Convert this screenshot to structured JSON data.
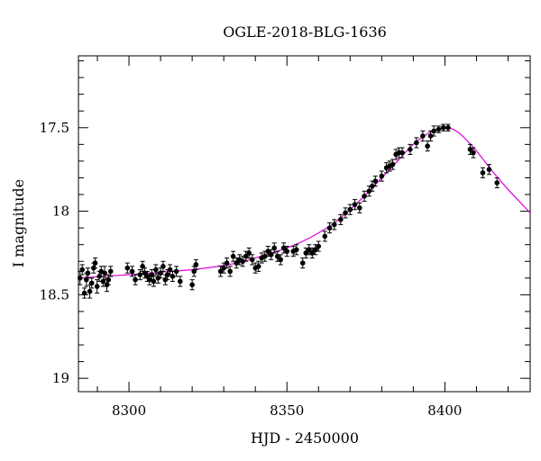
{
  "chart_data": {
    "type": "scatter",
    "title": "OGLE-2018-BLG-1636",
    "xlabel": "HJD - 2450000",
    "ylabel": "I magnitude",
    "xlim": [
      8284,
      8427
    ],
    "ylim": [
      19.08,
      17.07
    ],
    "y_inverted": true,
    "x_ticks": [
      8300,
      8350,
      8400
    ],
    "x_tick_labels": [
      "8300",
      "8350",
      "8400"
    ],
    "y_ticks": [
      17.5,
      18,
      18.5,
      19
    ],
    "y_tick_labels": [
      "17.5",
      "18",
      "18.5",
      "19"
    ],
    "grid": false,
    "colors": {
      "points": "#000000",
      "model": "#dd00dd"
    },
    "observations": [
      {
        "x": 8284.5,
        "y": 18.4,
        "err": 0.04
      },
      {
        "x": 8285.2,
        "y": 18.35,
        "err": 0.03
      },
      {
        "x": 8285.9,
        "y": 18.49,
        "err": 0.03
      },
      {
        "x": 8286.5,
        "y": 18.41,
        "err": 0.04
      },
      {
        "x": 8287.0,
        "y": 18.37,
        "err": 0.03
      },
      {
        "x": 8287.6,
        "y": 18.48,
        "err": 0.04
      },
      {
        "x": 8288.2,
        "y": 18.43,
        "err": 0.03
      },
      {
        "x": 8288.8,
        "y": 18.34,
        "err": 0.03
      },
      {
        "x": 8289.3,
        "y": 18.31,
        "err": 0.03
      },
      {
        "x": 8289.9,
        "y": 18.45,
        "err": 0.04
      },
      {
        "x": 8290.6,
        "y": 18.39,
        "err": 0.03
      },
      {
        "x": 8291.2,
        "y": 18.36,
        "err": 0.03
      },
      {
        "x": 8291.8,
        "y": 18.42,
        "err": 0.03
      },
      {
        "x": 8292.3,
        "y": 18.37,
        "err": 0.04
      },
      {
        "x": 8293.0,
        "y": 18.44,
        "err": 0.04
      },
      {
        "x": 8293.5,
        "y": 18.41,
        "err": 0.03
      },
      {
        "x": 8294.2,
        "y": 18.36,
        "err": 0.03
      },
      {
        "x": 8299.5,
        "y": 18.34,
        "err": 0.03
      },
      {
        "x": 8301.0,
        "y": 18.36,
        "err": 0.03
      },
      {
        "x": 8302.0,
        "y": 18.41,
        "err": 0.03
      },
      {
        "x": 8303.5,
        "y": 18.38,
        "err": 0.03
      },
      {
        "x": 8304.3,
        "y": 18.33,
        "err": 0.03
      },
      {
        "x": 8305.0,
        "y": 18.37,
        "err": 0.03
      },
      {
        "x": 8305.8,
        "y": 18.39,
        "err": 0.03
      },
      {
        "x": 8306.5,
        "y": 18.41,
        "err": 0.03
      },
      {
        "x": 8307.2,
        "y": 18.38,
        "err": 0.03
      },
      {
        "x": 8307.8,
        "y": 18.42,
        "err": 0.03
      },
      {
        "x": 8308.5,
        "y": 18.35,
        "err": 0.03
      },
      {
        "x": 8309.2,
        "y": 18.4,
        "err": 0.03
      },
      {
        "x": 8310.0,
        "y": 18.37,
        "err": 0.03
      },
      {
        "x": 8310.8,
        "y": 18.33,
        "err": 0.03
      },
      {
        "x": 8311.5,
        "y": 18.41,
        "err": 0.03
      },
      {
        "x": 8312.2,
        "y": 18.38,
        "err": 0.03
      },
      {
        "x": 8313.0,
        "y": 18.35,
        "err": 0.03
      },
      {
        "x": 8313.8,
        "y": 18.39,
        "err": 0.03
      },
      {
        "x": 8315.0,
        "y": 18.36,
        "err": 0.03
      },
      {
        "x": 8316.2,
        "y": 18.42,
        "err": 0.03
      },
      {
        "x": 8320.0,
        "y": 18.44,
        "err": 0.03
      },
      {
        "x": 8320.6,
        "y": 18.36,
        "err": 0.03
      },
      {
        "x": 8321.2,
        "y": 18.32,
        "err": 0.03
      },
      {
        "x": 8329.0,
        "y": 18.36,
        "err": 0.03
      },
      {
        "x": 8330.0,
        "y": 18.34,
        "err": 0.03
      },
      {
        "x": 8331.0,
        "y": 18.31,
        "err": 0.03
      },
      {
        "x": 8332.0,
        "y": 18.36,
        "err": 0.03
      },
      {
        "x": 8333.0,
        "y": 18.27,
        "err": 0.03
      },
      {
        "x": 8334.0,
        "y": 18.31,
        "err": 0.03
      },
      {
        "x": 8335.0,
        "y": 18.29,
        "err": 0.03
      },
      {
        "x": 8336.0,
        "y": 18.3,
        "err": 0.03
      },
      {
        "x": 8337.0,
        "y": 18.27,
        "err": 0.03
      },
      {
        "x": 8338.0,
        "y": 18.25,
        "err": 0.03
      },
      {
        "x": 8339.0,
        "y": 18.29,
        "err": 0.03
      },
      {
        "x": 8340.0,
        "y": 18.34,
        "err": 0.03
      },
      {
        "x": 8341.0,
        "y": 18.33,
        "err": 0.03
      },
      {
        "x": 8342.0,
        "y": 18.28,
        "err": 0.03
      },
      {
        "x": 8343.0,
        "y": 18.27,
        "err": 0.03
      },
      {
        "x": 8344.0,
        "y": 18.24,
        "err": 0.03
      },
      {
        "x": 8345.0,
        "y": 18.26,
        "err": 0.03
      },
      {
        "x": 8346.0,
        "y": 18.22,
        "err": 0.03
      },
      {
        "x": 8347.0,
        "y": 18.27,
        "err": 0.03
      },
      {
        "x": 8348.0,
        "y": 18.29,
        "err": 0.03
      },
      {
        "x": 8349.0,
        "y": 18.22,
        "err": 0.03
      },
      {
        "x": 8350.0,
        "y": 18.24,
        "err": 0.03
      },
      {
        "x": 8352.0,
        "y": 18.24,
        "err": 0.03
      },
      {
        "x": 8353.0,
        "y": 18.23,
        "err": 0.03
      },
      {
        "x": 8355.0,
        "y": 18.31,
        "err": 0.03
      },
      {
        "x": 8356.0,
        "y": 18.25,
        "err": 0.03
      },
      {
        "x": 8357.0,
        "y": 18.23,
        "err": 0.03
      },
      {
        "x": 8358.0,
        "y": 18.25,
        "err": 0.03
      },
      {
        "x": 8359.0,
        "y": 18.23,
        "err": 0.03
      },
      {
        "x": 8360.0,
        "y": 18.21,
        "err": 0.03
      },
      {
        "x": 8362.0,
        "y": 18.15,
        "err": 0.03
      },
      {
        "x": 8363.5,
        "y": 18.1,
        "err": 0.03
      },
      {
        "x": 8365.0,
        "y": 18.08,
        "err": 0.03
      },
      {
        "x": 8367.0,
        "y": 18.05,
        "err": 0.03
      },
      {
        "x": 8368.5,
        "y": 18.01,
        "err": 0.03
      },
      {
        "x": 8370.0,
        "y": 17.99,
        "err": 0.03
      },
      {
        "x": 8371.5,
        "y": 17.96,
        "err": 0.03
      },
      {
        "x": 8373.0,
        "y": 17.98,
        "err": 0.03
      },
      {
        "x": 8374.5,
        "y": 17.91,
        "err": 0.03
      },
      {
        "x": 8376.0,
        "y": 17.88,
        "err": 0.03
      },
      {
        "x": 8377.0,
        "y": 17.85,
        "err": 0.03
      },
      {
        "x": 8378.0,
        "y": 17.82,
        "err": 0.03
      },
      {
        "x": 8380.0,
        "y": 17.79,
        "err": 0.03
      },
      {
        "x": 8381.5,
        "y": 17.74,
        "err": 0.03
      },
      {
        "x": 8382.5,
        "y": 17.73,
        "err": 0.03
      },
      {
        "x": 8383.5,
        "y": 17.72,
        "err": 0.03
      },
      {
        "x": 8384.5,
        "y": 17.66,
        "err": 0.03
      },
      {
        "x": 8385.5,
        "y": 17.65,
        "err": 0.03
      },
      {
        "x": 8386.5,
        "y": 17.65,
        "err": 0.03
      },
      {
        "x": 8389.0,
        "y": 17.63,
        "err": 0.03
      },
      {
        "x": 8391.0,
        "y": 17.59,
        "err": 0.03
      },
      {
        "x": 8393.0,
        "y": 17.55,
        "err": 0.03
      },
      {
        "x": 8394.5,
        "y": 17.61,
        "err": 0.03
      },
      {
        "x": 8395.5,
        "y": 17.55,
        "err": 0.03
      },
      {
        "x": 8396.5,
        "y": 17.52,
        "err": 0.03
      },
      {
        "x": 8398.0,
        "y": 17.51,
        "err": 0.02
      },
      {
        "x": 8399.5,
        "y": 17.5,
        "err": 0.02
      },
      {
        "x": 8401.0,
        "y": 17.5,
        "err": 0.02
      },
      {
        "x": 8408.0,
        "y": 17.63,
        "err": 0.03
      },
      {
        "x": 8409.0,
        "y": 17.65,
        "err": 0.03
      },
      {
        "x": 8412.0,
        "y": 17.77,
        "err": 0.03
      },
      {
        "x": 8414.0,
        "y": 17.75,
        "err": 0.03
      },
      {
        "x": 8416.5,
        "y": 17.83,
        "err": 0.03
      }
    ],
    "model_curve": [
      {
        "x": 8284,
        "y": 18.4
      },
      {
        "x": 8300,
        "y": 18.38
      },
      {
        "x": 8310,
        "y": 18.365
      },
      {
        "x": 8320,
        "y": 18.35
      },
      {
        "x": 8330,
        "y": 18.325
      },
      {
        "x": 8335,
        "y": 18.305
      },
      {
        "x": 8340,
        "y": 18.28
      },
      {
        "x": 8345,
        "y": 18.25
      },
      {
        "x": 8350,
        "y": 18.22
      },
      {
        "x": 8355,
        "y": 18.18
      },
      {
        "x": 8360,
        "y": 18.13
      },
      {
        "x": 8365,
        "y": 18.07
      },
      {
        "x": 8370,
        "y": 17.99
      },
      {
        "x": 8375,
        "y": 17.9
      },
      {
        "x": 8380,
        "y": 17.8
      },
      {
        "x": 8385,
        "y": 17.7
      },
      {
        "x": 8390,
        "y": 17.6
      },
      {
        "x": 8395,
        "y": 17.53
      },
      {
        "x": 8398,
        "y": 17.505
      },
      {
        "x": 8400,
        "y": 17.5
      },
      {
        "x": 8402,
        "y": 17.505
      },
      {
        "x": 8405,
        "y": 17.54
      },
      {
        "x": 8410,
        "y": 17.64
      },
      {
        "x": 8415,
        "y": 17.76
      },
      {
        "x": 8420,
        "y": 17.87
      },
      {
        "x": 8425,
        "y": 17.97
      },
      {
        "x": 8427,
        "y": 18.01
      }
    ]
  }
}
